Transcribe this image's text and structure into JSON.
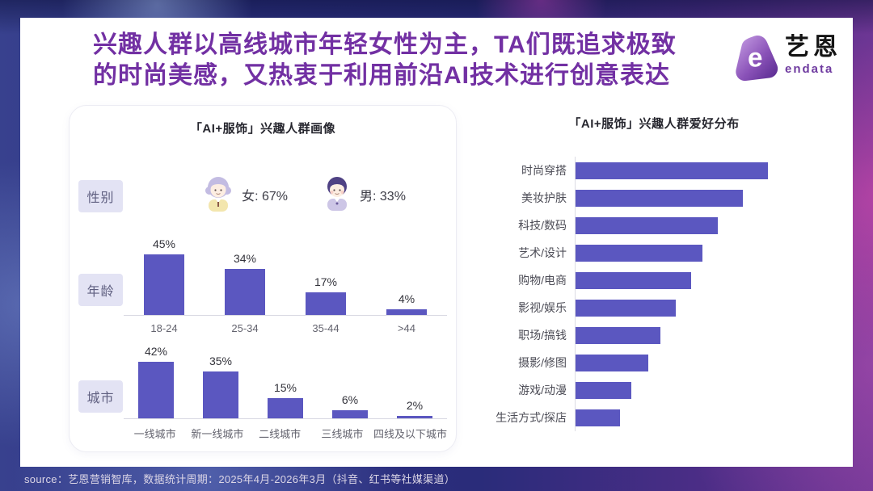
{
  "page": {
    "title_line1": "兴趣人群以高线城市年轻女性为主，TA们既追求极致",
    "title_line2": "的时尚美感，又热衷于利用前沿AI技术进行创意表达",
    "source": "source：艺恩营销智库，数据统计周期：2025年4月-2026年3月（抖音、红书等社媒渠道）"
  },
  "logo": {
    "name_cn": "艺恩",
    "name_en": "endata",
    "glyph": "e"
  },
  "colors": {
    "title_purple": "#7230A3",
    "bar_purple": "#5B57C0",
    "label_box_bg": "#E3E3F4",
    "bg_navy": "#2C3180",
    "bg_magenta": "#C8489E"
  },
  "left_card": {
    "title": "「AI+服饰」兴趣人群画像",
    "gender_label": "性别",
    "age_label": "年龄",
    "city_label": "城市",
    "female_text": "女: 67%",
    "male_text": "男: 33%"
  },
  "right_chart": {
    "title_regular": "「AI+服饰」兴趣人群",
    "title_bold": "爱好分布"
  },
  "chart_data": [
    {
      "type": "pie",
      "title": "性别",
      "categories": [
        "女",
        "男"
      ],
      "values": [
        67,
        33
      ],
      "unit": "%"
    },
    {
      "type": "bar",
      "title": "年龄",
      "categories": [
        "18-24",
        "25-34",
        "35-44",
        ">44"
      ],
      "values": [
        45,
        34,
        17,
        4
      ],
      "unit": "%",
      "ylim": [
        0,
        50
      ],
      "grid": false,
      "data_labels": true
    },
    {
      "type": "bar",
      "title": "城市",
      "categories": [
        "一线城市",
        "新一线城市",
        "二线城市",
        "三线城市",
        "四线及以下城市"
      ],
      "values": [
        42,
        35,
        15,
        6,
        2
      ],
      "unit": "%",
      "ylim": [
        0,
        45
      ],
      "grid": false,
      "data_labels": true
    },
    {
      "type": "bar",
      "orientation": "horizontal",
      "title": "「AI+服饰」兴趣人群爱好分布",
      "categories": [
        "时尚穿搭",
        "美妆护肤",
        "科技/数码",
        "艺术/设计",
        "购物/电商",
        "影视/娱乐",
        "职场/搞钱",
        "摄影/修图",
        "游戏/动漫",
        "生活方式/探店"
      ],
      "values": [
        100,
        87,
        74,
        66,
        60,
        52,
        44,
        38,
        29,
        23
      ],
      "values_relative": true,
      "data_labels": false,
      "grid": false,
      "legend": false
    }
  ]
}
